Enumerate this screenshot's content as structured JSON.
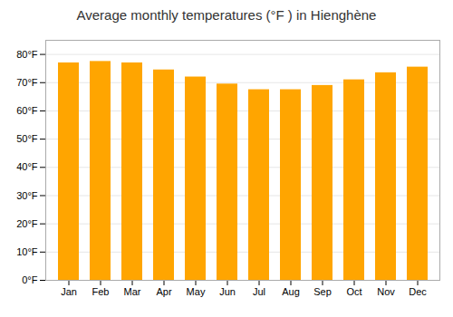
{
  "chart_data": {
    "type": "bar",
    "title": "Average monthly temperatures (°F ) in Hienghène",
    "categories": [
      "Jan",
      "Feb",
      "Mar",
      "Apr",
      "May",
      "Jun",
      "Jul",
      "Aug",
      "Sep",
      "Oct",
      "Nov",
      "Dec"
    ],
    "values": [
      77,
      77.5,
      77,
      74.5,
      72,
      69.5,
      67.5,
      67.5,
      69,
      71,
      73.5,
      75.5
    ],
    "color": "#FFA500",
    "ylim": [
      0,
      85
    ],
    "yticks": [
      {
        "value": 0,
        "label": "0°F"
      },
      {
        "value": 10,
        "label": "10°F"
      },
      {
        "value": 20,
        "label": "20°F"
      },
      {
        "value": 30,
        "label": "30°F"
      },
      {
        "value": 40,
        "label": "40°F"
      },
      {
        "value": 50,
        "label": "50°F"
      },
      {
        "value": 60,
        "label": "60°F"
      },
      {
        "value": 70,
        "label": "70°F"
      },
      {
        "value": 80,
        "label": "80°F"
      }
    ],
    "grid": true
  }
}
